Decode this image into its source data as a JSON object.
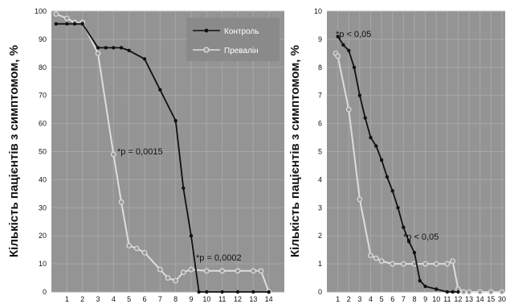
{
  "chart_data": [
    {
      "type": "line",
      "ylabel": "Кількість пацієнтів з симптомом, %",
      "ylim": [
        0,
        100
      ],
      "yticks": [
        0,
        10,
        20,
        30,
        40,
        50,
        60,
        70,
        80,
        90,
        100
      ],
      "xlim": [
        0,
        15
      ],
      "xticks": [
        "1",
        "2",
        "3",
        "4",
        "5",
        "6",
        "7",
        "8",
        "9",
        "10",
        "11",
        "12",
        "13",
        "14"
      ],
      "grid": true,
      "legend": "top-right",
      "series": [
        {
          "name": "Контроль",
          "color": "#111111",
          "x": [
            0.3,
            1,
            1.5,
            2,
            3,
            3.5,
            4,
            4.5,
            5,
            6,
            7,
            8,
            8.5,
            9,
            9.5,
            10,
            11,
            12,
            13,
            14
          ],
          "y": [
            95.5,
            95.5,
            95.5,
            95.5,
            87,
            87,
            87,
            87,
            86,
            83,
            72,
            61,
            37,
            20,
            0,
            0,
            0,
            0,
            0,
            0
          ]
        },
        {
          "name": "Превалін",
          "color": "#dddddd",
          "x": [
            0.3,
            1,
            1.5,
            2,
            3,
            4,
            4.5,
            5,
            5.5,
            6,
            7,
            7.5,
            8,
            8.5,
            9,
            10,
            11,
            12,
            13,
            13.5,
            14
          ],
          "y": [
            99,
            97.5,
            96,
            96,
            85,
            49,
            32,
            16.5,
            15.5,
            14,
            8,
            5,
            4,
            7,
            8,
            7.5,
            7.5,
            7.5,
            7.5,
            7.5,
            0
          ]
        }
      ],
      "annotations": [
        "*p = 0,0015",
        "*p = 0,0002"
      ]
    },
    {
      "type": "line",
      "ylabel": "Кількість пацієнтів з симптомом, %",
      "ylim": [
        0,
        10
      ],
      "yticks": [
        0,
        1,
        2,
        3,
        4,
        5,
        6,
        7,
        8,
        9,
        10
      ],
      "xlim": [
        0,
        16.3
      ],
      "xticks": [
        "1",
        "2",
        "3",
        "4",
        "5",
        "6",
        "7",
        "8",
        "9",
        "10",
        "11",
        "12",
        "13",
        "14",
        "15",
        "30"
      ],
      "grid": true,
      "series": [
        {
          "name": "Контроль",
          "color": "#111111",
          "x": [
            1,
            1.5,
            2,
            2.5,
            3,
            3.5,
            4,
            4.5,
            5,
            5.5,
            6,
            6.5,
            7,
            7.5,
            8,
            8.5,
            9,
            10,
            11,
            11.5,
            12
          ],
          "y": [
            9.1,
            8.8,
            8.6,
            8,
            7,
            6.2,
            5.5,
            5.2,
            4.7,
            4.1,
            3.6,
            3,
            2.3,
            1.8,
            1.4,
            0.4,
            0.2,
            0.1,
            0,
            0,
            0
          ]
        },
        {
          "name": "Превалін",
          "color": "#dddddd",
          "x": [
            0.8,
            1,
            2,
            3,
            4,
            4.5,
            5,
            6,
            7,
            8,
            9,
            10,
            11,
            11.5,
            12,
            12.5,
            13,
            14,
            15,
            16
          ],
          "y": [
            8.5,
            8.4,
            6.5,
            3.3,
            1.3,
            1.2,
            1.1,
            1,
            1,
            1,
            1,
            1,
            1,
            1.1,
            0.1,
            0,
            0,
            0,
            0,
            0
          ]
        }
      ],
      "annotations": [
        "*p < 0,05",
        "*p < 0,05"
      ]
    }
  ]
}
